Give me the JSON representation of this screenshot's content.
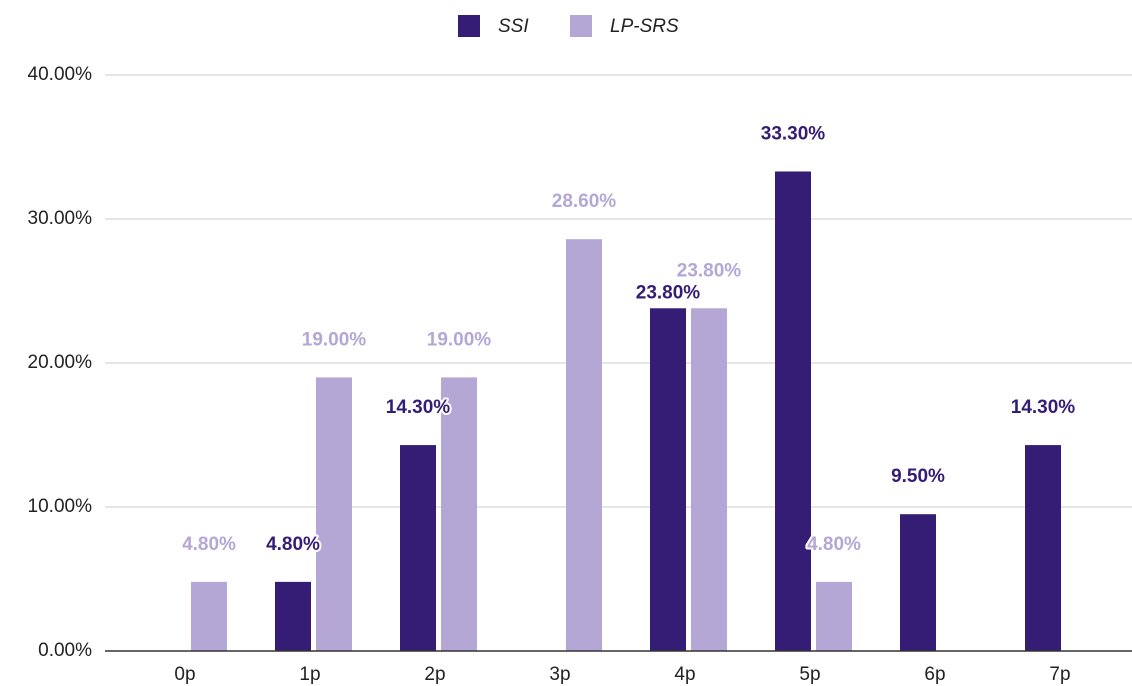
{
  "chart_data": {
    "type": "bar",
    "categories": [
      "0p",
      "1p",
      "2p",
      "3p",
      "4p",
      "5p",
      "6p",
      "7p"
    ],
    "series": [
      {
        "name": "SSI",
        "color": "#351c75",
        "values": [
          null,
          4.8,
          14.3,
          null,
          23.8,
          33.3,
          9.5,
          14.3
        ],
        "value_labels": [
          null,
          "4.80%",
          "14.30%",
          null,
          "23.80%",
          "33.30%",
          "9.50%",
          "14.30%"
        ]
      },
      {
        "name": "LP-SRS",
        "color": "#b4a7d6",
        "values": [
          4.8,
          19.0,
          19.0,
          28.6,
          23.8,
          4.8,
          null,
          null
        ],
        "value_labels": [
          "4.80%",
          "19.00%",
          "19.00%",
          "28.60%",
          "23.80%",
          "4.80%",
          null,
          null
        ]
      }
    ],
    "ylim": [
      0,
      40
    ],
    "yticks": [
      {
        "value": 0,
        "label": "0.00%"
      },
      {
        "value": 10,
        "label": "10.00%"
      },
      {
        "value": 20,
        "label": "20.00%"
      },
      {
        "value": 30,
        "label": "30.00%"
      },
      {
        "value": 40,
        "label": "40.00%"
      }
    ],
    "grid": true,
    "legend": "top"
  }
}
